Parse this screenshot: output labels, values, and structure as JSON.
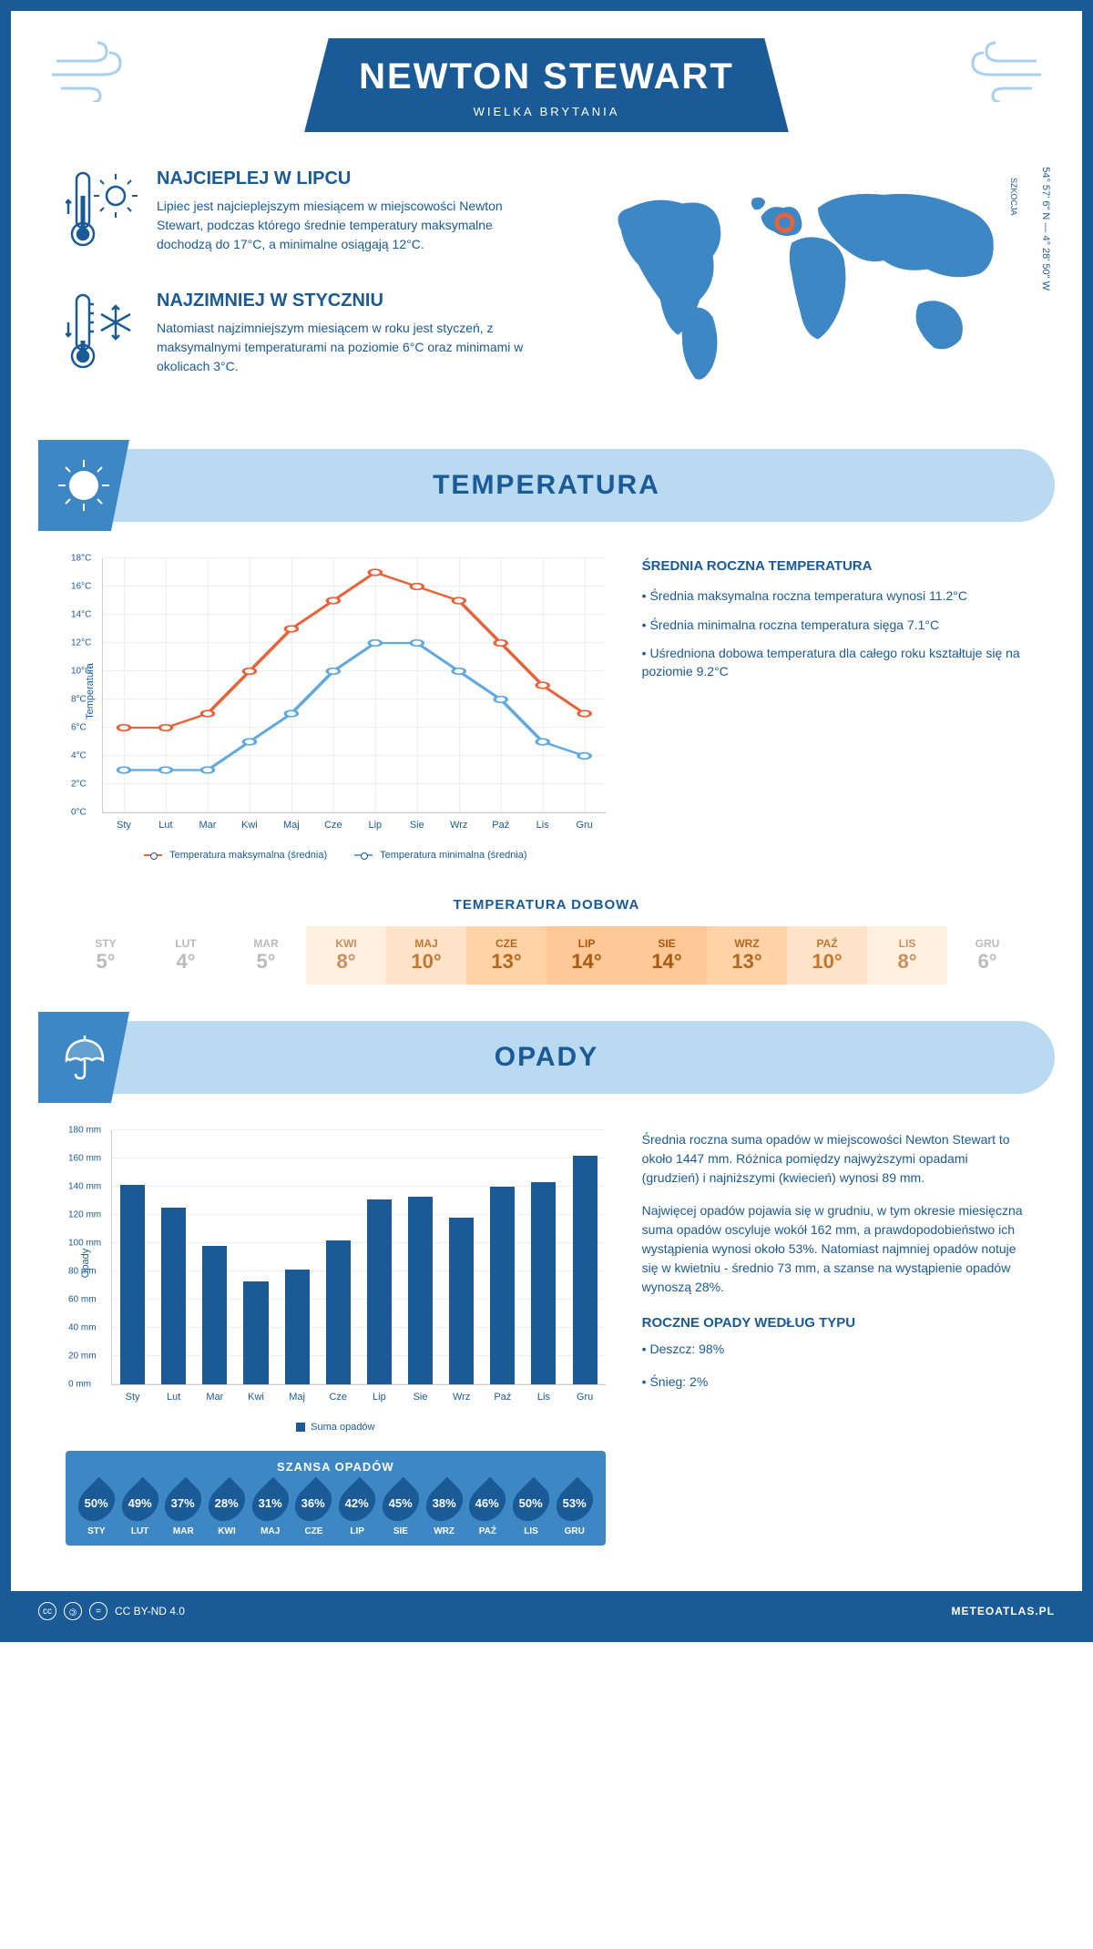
{
  "header": {
    "title": "NEWTON STEWART",
    "subtitle": "WIELKA BRYTANIA"
  },
  "intro": {
    "hot": {
      "title": "NAJCIEPLEJ W LIPCU",
      "text": "Lipiec jest najcieplejszym miesiącem w miejscowości Newton Stewart, podczas którego średnie temperatury maksymalne dochodzą do 17°C, a minimalne osiągają 12°C."
    },
    "cold": {
      "title": "NAJZIMNIEJ W STYCZNIU",
      "text": "Natomiast najzimniejszym miesiącem w roku jest styczeń, z maksymalnymi temperaturami na poziomie 6°C oraz minimami w okolicach 3°C."
    },
    "coords": "54° 57' 6\" N — 4° 28' 50\" W",
    "region": "SZKOCJA"
  },
  "temperature": {
    "section_title": "TEMPERATURA",
    "chart": {
      "type": "line",
      "y_label": "Temperatura",
      "x_labels": [
        "Sty",
        "Lut",
        "Mar",
        "Kwi",
        "Maj",
        "Cze",
        "Lip",
        "Sie",
        "Wrz",
        "Paź",
        "Lis",
        "Gru"
      ],
      "y_ticks": [
        0,
        2,
        4,
        6,
        8,
        10,
        12,
        14,
        16,
        18
      ],
      "y_tick_suffix": "°C",
      "ylim": [
        0,
        18
      ],
      "series": [
        {
          "name": "Temperatura maksymalna (średnia)",
          "color": "#e8623a",
          "values": [
            6,
            6,
            7,
            10,
            13,
            15,
            17,
            16,
            15,
            12,
            9,
            7
          ]
        },
        {
          "name": "Temperatura minimalna (średnia)",
          "color": "#5fa8e0",
          "values": [
            3,
            3,
            3,
            5,
            7,
            10,
            12,
            12,
            10,
            8,
            5,
            4
          ]
        }
      ],
      "grid_color": "#e8e8e8",
      "background_color": "#ffffff",
      "label_fontsize": 11
    },
    "info": {
      "title": "ŚREDNIA ROCZNA TEMPERATURA",
      "bullets": [
        "Średnia maksymalna roczna temperatura wynosi 11.2°C",
        "Średnia minimalna roczna temperatura sięga 7.1°C",
        "Uśredniona dobowa temperatura dla całego roku kształtuje się na poziomie 9.2°C"
      ]
    },
    "daily": {
      "title": "TEMPERATURA DOBOWA",
      "months": [
        "STY",
        "LUT",
        "MAR",
        "KWI",
        "MAJ",
        "CZE",
        "LIP",
        "SIE",
        "WRZ",
        "PAŹ",
        "LIS",
        "GRU"
      ],
      "values": [
        "5°",
        "4°",
        "5°",
        "8°",
        "10°",
        "13°",
        "14°",
        "14°",
        "13°",
        "10°",
        "8°",
        "6°"
      ],
      "colors": [
        "#ffffff",
        "#ffffff",
        "#ffffff",
        "#fff0e0",
        "#ffe3c9",
        "#ffd2a8",
        "#ffc896",
        "#ffc896",
        "#ffd2a8",
        "#ffe3c9",
        "#fff0e0",
        "#ffffff"
      ],
      "text_colors": [
        "#bbb",
        "#bbb",
        "#bbb",
        "#c89060",
        "#c07830",
        "#b06820",
        "#a85810",
        "#a85810",
        "#b06820",
        "#c07830",
        "#c89060",
        "#bbb"
      ]
    }
  },
  "precipitation": {
    "section_title": "OPADY",
    "chart": {
      "type": "bar",
      "y_label": "Opady",
      "x_labels": [
        "Sty",
        "Lut",
        "Mar",
        "Kwi",
        "Maj",
        "Cze",
        "Lip",
        "Sie",
        "Wrz",
        "Paź",
        "Lis",
        "Gru"
      ],
      "y_ticks": [
        0,
        20,
        40,
        60,
        80,
        100,
        120,
        140,
        160,
        180
      ],
      "y_tick_suffix": " mm",
      "ylim": [
        0,
        180
      ],
      "values": [
        141,
        125,
        98,
        73,
        81,
        102,
        131,
        133,
        118,
        140,
        143,
        162
      ],
      "bar_color": "#1a5a96",
      "grid_color": "#e8e8e8",
      "legend_label": "Suma opadów",
      "label_fontsize": 11
    },
    "text1": "Średnia roczna suma opadów w miejscowości Newton Stewart to około 1447 mm. Różnica pomiędzy najwyższymi opadami (grudzień) i najniższymi (kwiecień) wynosi 89 mm.",
    "text2": "Najwięcej opadów pojawia się w grudniu, w tym okresie miesięczna suma opadów oscyluje wokół 162 mm, a prawdopodobieństwo ich wystąpienia wynosi około 53%. Natomiast najmniej opadów notuje się w kwietniu - średnio 73 mm, a szanse na wystąpienie opadów wynoszą 28%.",
    "chance": {
      "title": "SZANSA OPADÓW",
      "months": [
        "STY",
        "LUT",
        "MAR",
        "KWI",
        "MAJ",
        "CZE",
        "LIP",
        "SIE",
        "WRZ",
        "PAŹ",
        "LIS",
        "GRU"
      ],
      "values": [
        "50%",
        "49%",
        "37%",
        "28%",
        "31%",
        "36%",
        "42%",
        "45%",
        "38%",
        "46%",
        "50%",
        "53%"
      ]
    },
    "by_type": {
      "title": "ROCZNE OPADY WEDŁUG TYPU",
      "items": [
        "Deszcz: 98%",
        "Śnieg: 2%"
      ]
    }
  },
  "footer": {
    "license": "CC BY-ND 4.0",
    "brand": "METEOATLAS.PL"
  }
}
